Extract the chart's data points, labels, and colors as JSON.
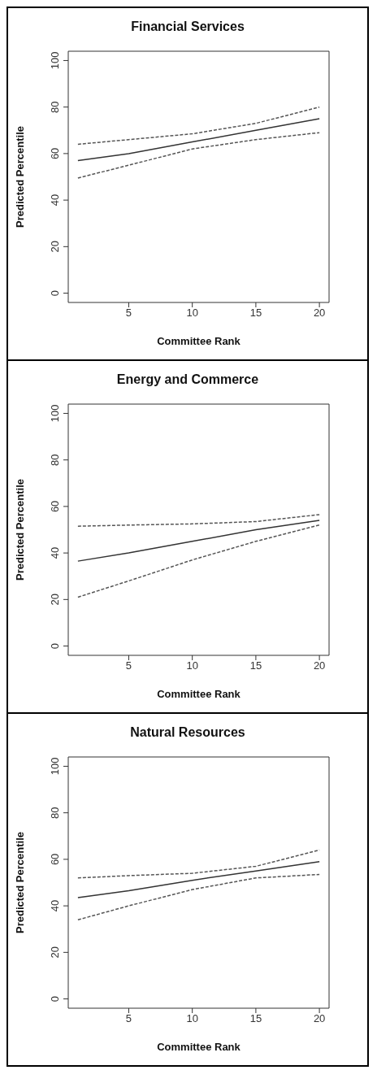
{
  "chart_data": [
    {
      "type": "line",
      "title": "Financial Services",
      "xlabel": "Committee Rank",
      "ylabel": "Predicted Percentile",
      "x": [
        1,
        5,
        10,
        15,
        20
      ],
      "xlim": [
        0.24,
        20.76
      ],
      "xticks": [
        5,
        10,
        15,
        20
      ],
      "ylim": [
        -4,
        104
      ],
      "yticks": [
        0,
        20,
        40,
        60,
        80,
        100
      ],
      "grid": false,
      "legend": false,
      "marker": "none",
      "series": [
        {
          "color": "#333333",
          "line_style": "solid",
          "values": [
            57,
            60,
            65,
            70,
            75
          ]
        },
        {
          "color": "#555555",
          "line_style": "dashed",
          "values": [
            64,
            66,
            68.5,
            73,
            80
          ]
        },
        {
          "color": "#555555",
          "line_style": "dashed",
          "values": [
            49.5,
            55,
            62,
            66,
            69
          ]
        }
      ]
    },
    {
      "type": "line",
      "title": "Energy and Commerce",
      "xlabel": "Committee Rank",
      "ylabel": "Predicted Percentile",
      "x": [
        1,
        5,
        10,
        15,
        20
      ],
      "xlim": [
        0.24,
        20.76
      ],
      "xticks": [
        5,
        10,
        15,
        20
      ],
      "ylim": [
        -4,
        104
      ],
      "yticks": [
        0,
        20,
        40,
        60,
        80,
        100
      ],
      "grid": false,
      "legend": false,
      "marker": "none",
      "series": [
        {
          "color": "#333333",
          "line_style": "solid",
          "values": [
            36.5,
            40,
            45,
            50,
            54
          ]
        },
        {
          "color": "#555555",
          "line_style": "dashed",
          "values": [
            51.5,
            52,
            52.5,
            53.5,
            56.5
          ]
        },
        {
          "color": "#555555",
          "line_style": "dashed",
          "values": [
            21,
            28,
            37,
            45,
            52
          ]
        }
      ]
    },
    {
      "type": "line",
      "title": "Natural Resources",
      "xlabel": "Committee Rank",
      "ylabel": "Predicted Percentile",
      "x": [
        1,
        5,
        10,
        15,
        20
      ],
      "xlim": [
        0.24,
        20.76
      ],
      "xticks": [
        5,
        10,
        15,
        20
      ],
      "ylim": [
        -4,
        104
      ],
      "yticks": [
        0,
        20,
        40,
        60,
        80,
        100
      ],
      "grid": false,
      "legend": false,
      "marker": "none",
      "series": [
        {
          "color": "#333333",
          "line_style": "solid",
          "values": [
            43.5,
            46.5,
            51,
            55,
            59
          ]
        },
        {
          "color": "#555555",
          "line_style": "dashed",
          "values": [
            52,
            53,
            54,
            57,
            64
          ]
        },
        {
          "color": "#555555",
          "line_style": "dashed",
          "values": [
            34,
            40,
            47,
            52,
            53.5
          ]
        }
      ]
    }
  ]
}
